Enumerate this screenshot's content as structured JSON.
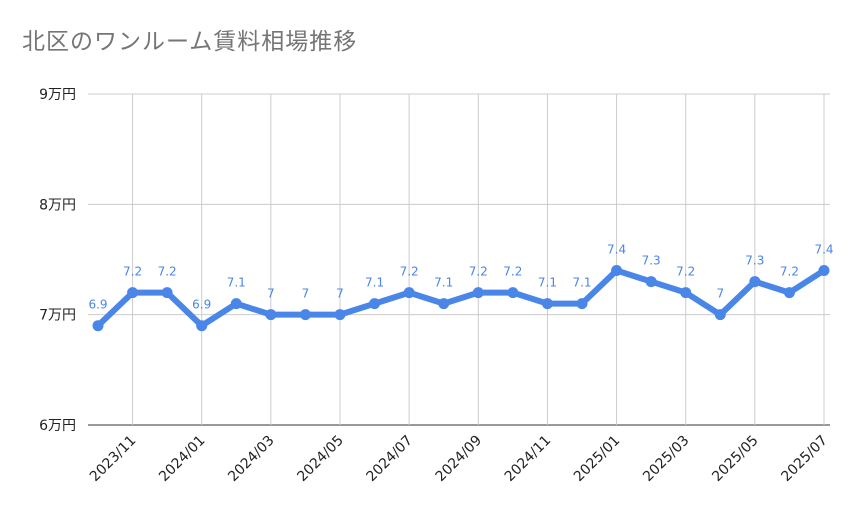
{
  "chart_data": {
    "type": "line",
    "title": "北区のワンルーム賃料相場推移",
    "xlabel": "",
    "ylabel": "",
    "y_unit": "万円",
    "ylim": [
      6,
      9
    ],
    "yticks": [
      6,
      7,
      8,
      9
    ],
    "ytick_labels": [
      "6万円",
      "7万円",
      "8万円",
      "9万円"
    ],
    "grid": true,
    "line_color": "#4a86e8",
    "x": [
      "2023/10",
      "2023/11",
      "2023/12",
      "2024/01",
      "2024/02",
      "2024/03",
      "2024/04",
      "2024/05",
      "2024/06",
      "2024/07",
      "2024/08",
      "2024/09",
      "2024/10",
      "2024/11",
      "2024/12",
      "2025/01",
      "2025/02",
      "2025/03",
      "2025/04",
      "2025/05",
      "2025/06",
      "2025/07"
    ],
    "xtick_labels": [
      "2023/11",
      "2024/01",
      "2024/03",
      "2024/05",
      "2024/07",
      "2024/09",
      "2024/11",
      "2025/01",
      "2025/03",
      "2025/05",
      "2025/07"
    ],
    "values": [
      6.9,
      7.2,
      7.2,
      6.9,
      7.1,
      7.0,
      7.0,
      7.0,
      7.1,
      7.2,
      7.1,
      7.2,
      7.2,
      7.1,
      7.1,
      7.4,
      7.3,
      7.2,
      7.0,
      7.3,
      7.2,
      7.4
    ],
    "data_labels": [
      "6.9",
      "7.2",
      "7.2",
      "6.9",
      "7.1",
      "7",
      "7",
      "7",
      "7.1",
      "7.2",
      "7.1",
      "7.2",
      "7.2",
      "7.1",
      "7.1",
      "7.4",
      "7.3",
      "7.2",
      "7",
      "7.3",
      "7.2",
      "7.4"
    ]
  }
}
